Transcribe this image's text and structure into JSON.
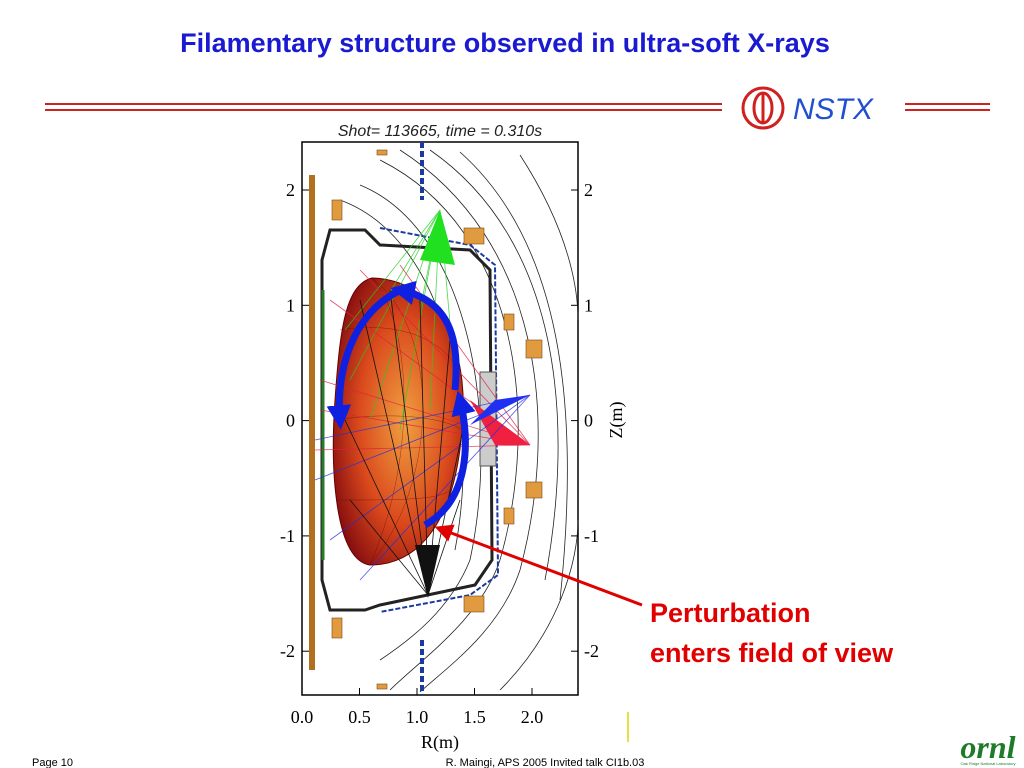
{
  "header": {
    "title": "Filamentary structure observed in ultra-soft X-rays",
    "logo_text": "NSTX"
  },
  "figure": {
    "caption": "Shot= 113665, time = 0.310s",
    "x_ticks": [
      "0.0",
      "0.5",
      "1.0",
      "1.5",
      "2.0"
    ],
    "x_label": "R(m)",
    "y_ticks_left": [
      "2",
      "1",
      "0",
      "-1",
      "-2"
    ],
    "y_ticks_right": [
      "2",
      "1",
      "0",
      "-1",
      "-2"
    ],
    "y_label": "Z(m)"
  },
  "annotation": {
    "lines": [
      "Perturbation",
      "enters field of view"
    ]
  },
  "footer": {
    "page": "Page 10",
    "citation": "R. Maingi, APS 2005  Invited talk CI1b.03",
    "logo": "ornl",
    "logo_subtext": "Oak Ridge National Laboratory"
  }
}
